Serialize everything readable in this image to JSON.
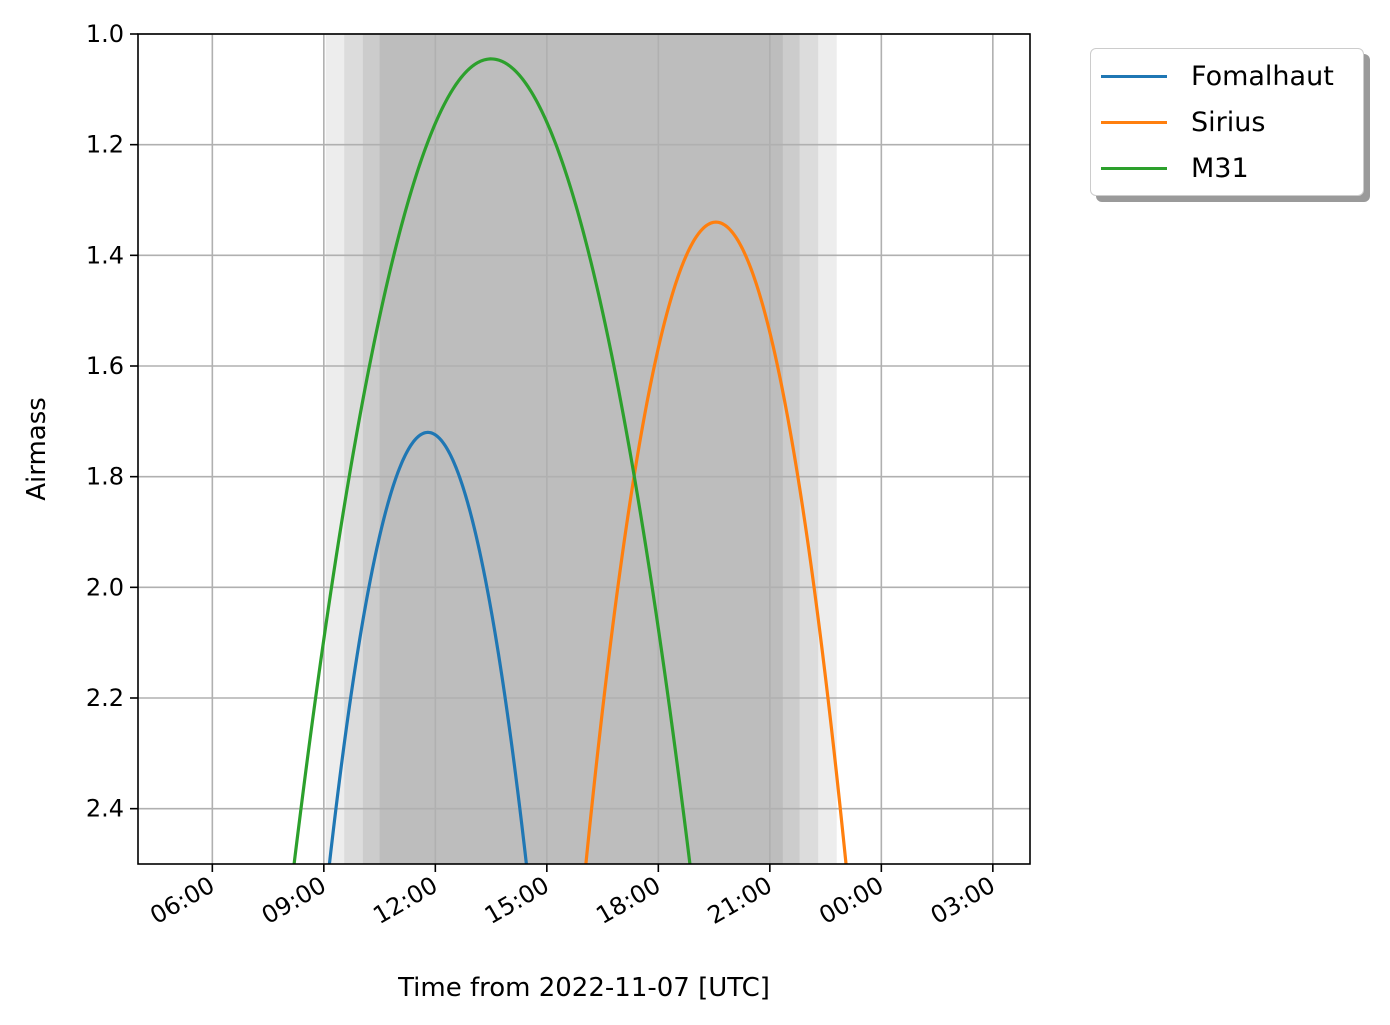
{
  "chart_data": {
    "type": "line",
    "title": "",
    "xlabel": "Time from 2022-11-07 [UTC]",
    "ylabel": "Airmass",
    "x_unit": "hours UTC on 2022-11-07",
    "xlim": [
      4.0,
      28.0
    ],
    "ylim": [
      2.5,
      1.0
    ],
    "y_inverted": true,
    "grid": true,
    "legend_position": "outside-upper-right",
    "x_ticks": [
      {
        "value": 6,
        "label": "06:00"
      },
      {
        "value": 9,
        "label": "09:00"
      },
      {
        "value": 12,
        "label": "12:00"
      },
      {
        "value": 15,
        "label": "15:00"
      },
      {
        "value": 18,
        "label": "18:00"
      },
      {
        "value": 21,
        "label": "21:00"
      },
      {
        "value": 24,
        "label": "00:00"
      },
      {
        "value": 27,
        "label": "03:00"
      }
    ],
    "y_ticks": [
      {
        "value": 1.0,
        "label": "1.0"
      },
      {
        "value": 1.2,
        "label": "1.2"
      },
      {
        "value": 1.4,
        "label": "1.4"
      },
      {
        "value": 1.6,
        "label": "1.6"
      },
      {
        "value": 1.8,
        "label": "1.8"
      },
      {
        "value": 2.0,
        "label": "2.0"
      },
      {
        "value": 2.2,
        "label": "2.2"
      },
      {
        "value": 2.4,
        "label": "2.4"
      }
    ],
    "night_shading": [
      {
        "start": 9.05,
        "end": 22.8,
        "alpha": 0.07
      },
      {
        "start": 9.55,
        "end": 22.3,
        "alpha": 0.07
      },
      {
        "start": 10.05,
        "end": 21.8,
        "alpha": 0.07
      },
      {
        "start": 10.5,
        "end": 21.35,
        "alpha": 0.07
      }
    ],
    "series": [
      {
        "name": "Fomalhaut",
        "color": "#1f77b4",
        "peak_time": 11.8,
        "peak_airmass": 1.72,
        "x_at_2_5": [
          9.15,
          14.45
        ]
      },
      {
        "name": "Sirius",
        "color": "#ff7f0e",
        "peak_time": 19.55,
        "peak_airmass": 1.34,
        "x_at_2_5": [
          16.05,
          23.05
        ]
      },
      {
        "name": "M31",
        "color": "#2ca02c",
        "peak_time": 13.5,
        "peak_airmass": 1.045,
        "x_at_2_5": [
          8.2,
          18.85
        ]
      }
    ]
  }
}
